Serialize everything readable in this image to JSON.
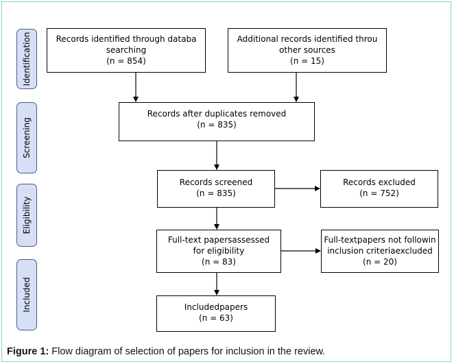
{
  "stages": [
    {
      "label": "Identification"
    },
    {
      "label": "Screening"
    },
    {
      "label": "Eligibility"
    },
    {
      "label": "Included"
    }
  ],
  "boxes": {
    "database": {
      "line1": "Records identified through databa",
      "line2": "searching",
      "line3": "(n = 854)"
    },
    "other": {
      "line1": "Additional records identified throu",
      "line2": "other sources",
      "line3": "(n = 15)"
    },
    "duplicates": {
      "line1": "Records after duplicates removed",
      "line2": "(n = 835)"
    },
    "screened": {
      "line1": "Records screened",
      "line2": "(n = 835)"
    },
    "excluded": {
      "line1": "Records excluded",
      "line2": "(n = 752)"
    },
    "fulltext": {
      "line1": "Full-text papersassessed",
      "line2": "for eligibility",
      "line3": "(n = 83)"
    },
    "fulltext_excluded": {
      "line1": "Full-textpapers not followin",
      "line2": "inclusion criteriaexcluded",
      "line3": "(n = 20)"
    },
    "included": {
      "line1": "Includedpapers",
      "line2": "(n = 63)"
    }
  },
  "caption": {
    "prefix": "Figure 1:",
    "text": " Flow diagram of selection of papers for inclusion in the review."
  },
  "colors": {
    "stage_fill": "#d6dff4",
    "stage_border": "#4a5a8a",
    "frame_border": "#7fd6c8"
  }
}
